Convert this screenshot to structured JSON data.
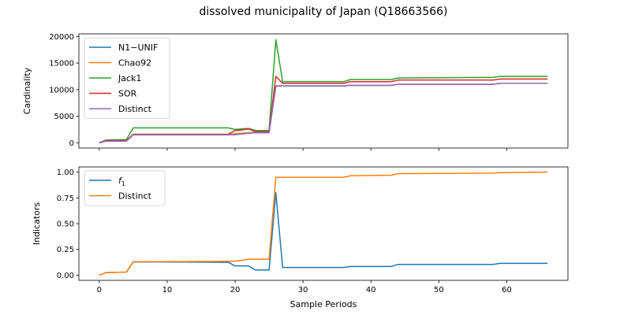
{
  "title": "dissolved municipality of Japan (Q18663566)",
  "chart_data": [
    {
      "type": "line",
      "ylabel": "Cardinality",
      "xlabel": "",
      "xlim": [
        -3,
        69
      ],
      "ylim": [
        -1000,
        20500
      ],
      "yticks": [
        0,
        5000,
        10000,
        15000,
        20000
      ],
      "xticks": [
        0,
        10,
        20,
        30,
        40,
        50,
        60
      ],
      "show_xtick_labels": false,
      "legend": "top-left",
      "series": [
        {
          "name": "N1−UNIF",
          "color": "#1f77b4",
          "points": [
            [
              0,
              0
            ],
            [
              1,
              300
            ],
            [
              4,
              300
            ],
            [
              5,
              1500
            ],
            [
              19,
              1500
            ],
            [
              20,
              1700
            ],
            [
              22,
              1800
            ],
            [
              23,
              1900
            ],
            [
              25,
              1900
            ],
            [
              26,
              10700
            ],
            [
              27,
              10700
            ],
            [
              36,
              10700
            ],
            [
              37,
              10800
            ],
            [
              43,
              10800
            ],
            [
              44,
              11000
            ],
            [
              58,
              11000
            ],
            [
              59,
              11200
            ],
            [
              66,
              11200
            ]
          ]
        },
        {
          "name": "Chao92",
          "color": "#ff7f0e",
          "points": [
            [
              0,
              0
            ],
            [
              1,
              300
            ],
            [
              4,
              300
            ],
            [
              5,
              1500
            ],
            [
              19,
              1500
            ],
            [
              20,
              1700
            ],
            [
              22,
              1900
            ],
            [
              23,
              2000
            ],
            [
              25,
              2000
            ],
            [
              26,
              10700
            ],
            [
              27,
              10700
            ],
            [
              36,
              10700
            ],
            [
              37,
              10800
            ],
            [
              43,
              10800
            ],
            [
              44,
              11000
            ],
            [
              58,
              11000
            ],
            [
              59,
              11200
            ],
            [
              66,
              11200
            ]
          ]
        },
        {
          "name": "Jack1",
          "color": "#2ca02c",
          "points": [
            [
              0,
              0
            ],
            [
              1,
              500
            ],
            [
              4,
              600
            ],
            [
              5,
              2800
            ],
            [
              19,
              2800
            ],
            [
              20,
              2500
            ],
            [
              22,
              2700
            ],
            [
              23,
              2300
            ],
            [
              25,
              2300
            ],
            [
              26,
              19400
            ],
            [
              27,
              11500
            ],
            [
              36,
              11500
            ],
            [
              37,
              11900
            ],
            [
              43,
              11900
            ],
            [
              44,
              12200
            ],
            [
              58,
              12300
            ],
            [
              59,
              12500
            ],
            [
              66,
              12500
            ]
          ]
        },
        {
          "name": "SOR",
          "color": "#d62728",
          "points": [
            [
              0,
              0
            ],
            [
              1,
              400
            ],
            [
              4,
              400
            ],
            [
              5,
              1600
            ],
            [
              19,
              1600
            ],
            [
              20,
              2300
            ],
            [
              21,
              2400
            ],
            [
              22,
              2600
            ],
            [
              23,
              2100
            ],
            [
              25,
              2100
            ],
            [
              26,
              12500
            ],
            [
              27,
              11200
            ],
            [
              36,
              11200
            ],
            [
              37,
              11500
            ],
            [
              43,
              11500
            ],
            [
              44,
              11800
            ],
            [
              58,
              11800
            ],
            [
              59,
              12000
            ],
            [
              66,
              12000
            ]
          ]
        },
        {
          "name": "Distinct",
          "color": "#9467bd",
          "points": [
            [
              0,
              0
            ],
            [
              1,
              300
            ],
            [
              4,
              300
            ],
            [
              5,
              1500
            ],
            [
              19,
              1500
            ],
            [
              20,
              1500
            ],
            [
              22,
              1800
            ],
            [
              23,
              1900
            ],
            [
              25,
              1900
            ],
            [
              26,
              10700
            ],
            [
              27,
              10700
            ],
            [
              36,
              10700
            ],
            [
              37,
              10800
            ],
            [
              43,
              10800
            ],
            [
              44,
              11000
            ],
            [
              58,
              11000
            ],
            [
              59,
              11200
            ],
            [
              66,
              11200
            ]
          ]
        }
      ]
    },
    {
      "type": "line",
      "ylabel": "Indicators",
      "xlabel": "Sample Periods",
      "xlim": [
        -3,
        69
      ],
      "ylim": [
        -0.05,
        1.05
      ],
      "yticks": [
        0.0,
        0.25,
        0.5,
        0.75,
        1.0
      ],
      "ytick_labels": [
        "0.00",
        "0.25",
        "0.50",
        "0.75",
        "1.00"
      ],
      "xticks": [
        0,
        10,
        20,
        30,
        40,
        50,
        60
      ],
      "show_xtick_labels": true,
      "legend": "top-left",
      "series": [
        {
          "name": "f₁",
          "legend_main": "f",
          "legend_sub": "1",
          "color": "#1f77b4",
          "points": [
            [
              0,
              0
            ],
            [
              1,
              0.025
            ],
            [
              4,
              0.03
            ],
            [
              5,
              0.13
            ],
            [
              19,
              0.125
            ],
            [
              20,
              0.09
            ],
            [
              22,
              0.09
            ],
            [
              23,
              0.05
            ],
            [
              25,
              0.05
            ],
            [
              26,
              0.8
            ],
            [
              27,
              0.075
            ],
            [
              36,
              0.075
            ],
            [
              37,
              0.085
            ],
            [
              43,
              0.085
            ],
            [
              44,
              0.105
            ],
            [
              58,
              0.105
            ],
            [
              59,
              0.115
            ],
            [
              66,
              0.115
            ]
          ]
        },
        {
          "name": "Distinct",
          "color": "#ff7f0e",
          "points": [
            [
              0,
              0
            ],
            [
              1,
              0.025
            ],
            [
              4,
              0.03
            ],
            [
              5,
              0.13
            ],
            [
              19,
              0.135
            ],
            [
              20,
              0.135
            ],
            [
              22,
              0.155
            ],
            [
              23,
              0.155
            ],
            [
              25,
              0.155
            ],
            [
              26,
              0.95
            ],
            [
              27,
              0.95
            ],
            [
              36,
              0.95
            ],
            [
              37,
              0.965
            ],
            [
              43,
              0.97
            ],
            [
              44,
              0.985
            ],
            [
              58,
              0.99
            ],
            [
              59,
              0.995
            ],
            [
              66,
              1.0
            ]
          ]
        }
      ]
    }
  ]
}
